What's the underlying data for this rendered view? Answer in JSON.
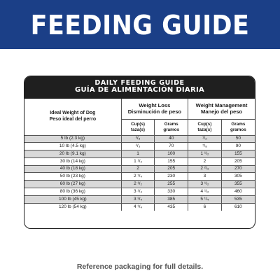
{
  "banner": {
    "title": "FEEDING GUIDE"
  },
  "table": {
    "heading_en": "DAILY FEEDING GUIDE",
    "heading_es": "GUÍA DE ALIMENTACIÓN DIARIA",
    "weight_header_en": "Ideal Weight of Dog",
    "weight_header_es": "Peso ideal del perro",
    "groups": [
      {
        "en": "Weight Loss",
        "es": "Disminución de peso",
        "cups_en": "Cup(s)",
        "cups_es": "taza(s)",
        "grams_en": "Grams",
        "grams_es": "gramos"
      },
      {
        "en": "Weight Management",
        "es": "Manejo del peso",
        "cups_en": "Cup(s)",
        "cups_es": "taza(s)",
        "grams_en": "Grams",
        "grams_es": "gramos"
      }
    ],
    "rows": [
      {
        "weight": "5 lb (2.3 kg)",
        "loss_cups": "³/₈",
        "loss_grams": "40",
        "mgmt_cups": "¹/₂",
        "mgmt_grams": "50"
      },
      {
        "weight": "10 lb (4.5 kg)",
        "loss_cups": "²/₃",
        "loss_grams": "70",
        "mgmt_cups": "⁷/₈",
        "mgmt_grams": "90"
      },
      {
        "weight": "20 lb (9.1 kg)",
        "loss_cups": "1",
        "loss_grams": "100",
        "mgmt_cups": "1 ¹/₂",
        "mgmt_grams": "155"
      },
      {
        "weight": "30 lb (14 kg)",
        "loss_cups": "1 ¹/₂",
        "loss_grams": "155",
        "mgmt_cups": "2",
        "mgmt_grams": "205"
      },
      {
        "weight": "40 lb (18 kg)",
        "loss_cups": "2",
        "loss_grams": "205",
        "mgmt_cups": "2 ²/₃",
        "mgmt_grams": "270"
      },
      {
        "weight": "50 lb (23 kg)",
        "loss_cups": "2 ¹/₄",
        "loss_grams": "230",
        "mgmt_cups": "3",
        "mgmt_grams": "305"
      },
      {
        "weight": "60 lb (27 kg)",
        "loss_cups": "2 ¹/₂",
        "loss_grams": "255",
        "mgmt_cups": "3 ¹/₂",
        "mgmt_grams": "355"
      },
      {
        "weight": "80 lb (36 kg)",
        "loss_cups": "3 ¹/₄",
        "loss_grams": "330",
        "mgmt_cups": "4 ¹/₂",
        "mgmt_grams": "460"
      },
      {
        "weight": "100 lb (45 kg)",
        "loss_cups": "3 ³/₄",
        "loss_grams": "385",
        "mgmt_cups": "5 ¹/₄",
        "mgmt_grams": "535"
      },
      {
        "weight": "120 lb (54 kg)",
        "loss_cups": "4 ¹/₄",
        "loss_grams": "435",
        "mgmt_cups": "6",
        "mgmt_grams": "610"
      }
    ]
  },
  "footer": {
    "note": "Reference packaging for full details."
  },
  "colors": {
    "banner": "#1b3f87",
    "table_header": "#1f1f1f",
    "row_shade": "#d9d9d9",
    "footer_text": "#555555"
  }
}
